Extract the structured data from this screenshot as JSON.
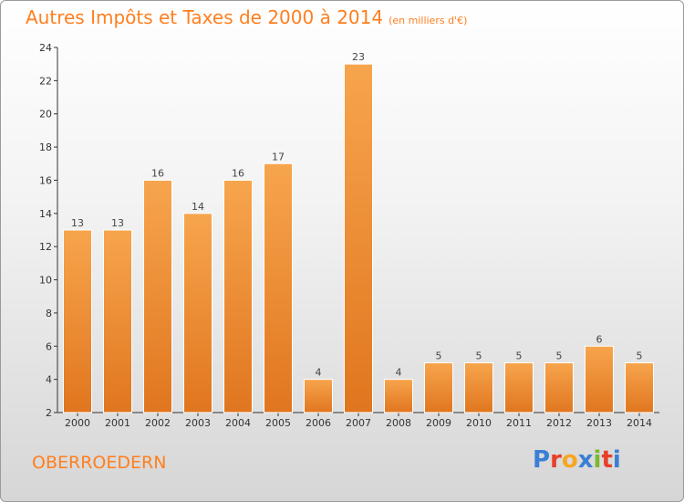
{
  "header": {
    "title": "Autres Impôts et Taxes de 2000 à 2014",
    "subtitle": "(en milliers d'€)"
  },
  "footer": {
    "commune": "OBERROEDERN",
    "logo_letters": [
      "P",
      "r",
      "o",
      "x",
      "i",
      "t",
      "i"
    ]
  },
  "colors": {
    "bar_light": "#f7a54d",
    "bar_dark": "#e0761f",
    "title": "#ff7f1f",
    "logo": [
      "#3a7fd5",
      "#e8402a",
      "#f5a623",
      "#3a7fd5",
      "#7cb82f",
      "#e8402a",
      "#3a7fd5"
    ]
  },
  "chart_data": {
    "type": "bar",
    "categories": [
      "2000",
      "2001",
      "2002",
      "2003",
      "2004",
      "2005",
      "2006",
      "2007",
      "2008",
      "2009",
      "2010",
      "2011",
      "2012",
      "2013",
      "2014"
    ],
    "values": [
      13,
      13,
      16,
      14,
      16,
      17,
      4,
      23,
      4,
      5,
      5,
      5,
      5,
      6,
      5
    ],
    "title": "Autres Impôts et Taxes de 2000 à 2014",
    "xlabel": "",
    "ylabel": "",
    "ylim": [
      2,
      24
    ],
    "yticks": [
      2,
      4,
      6,
      8,
      10,
      12,
      14,
      16,
      18,
      20,
      22,
      24
    ],
    "grid": false,
    "data_labels": true
  }
}
